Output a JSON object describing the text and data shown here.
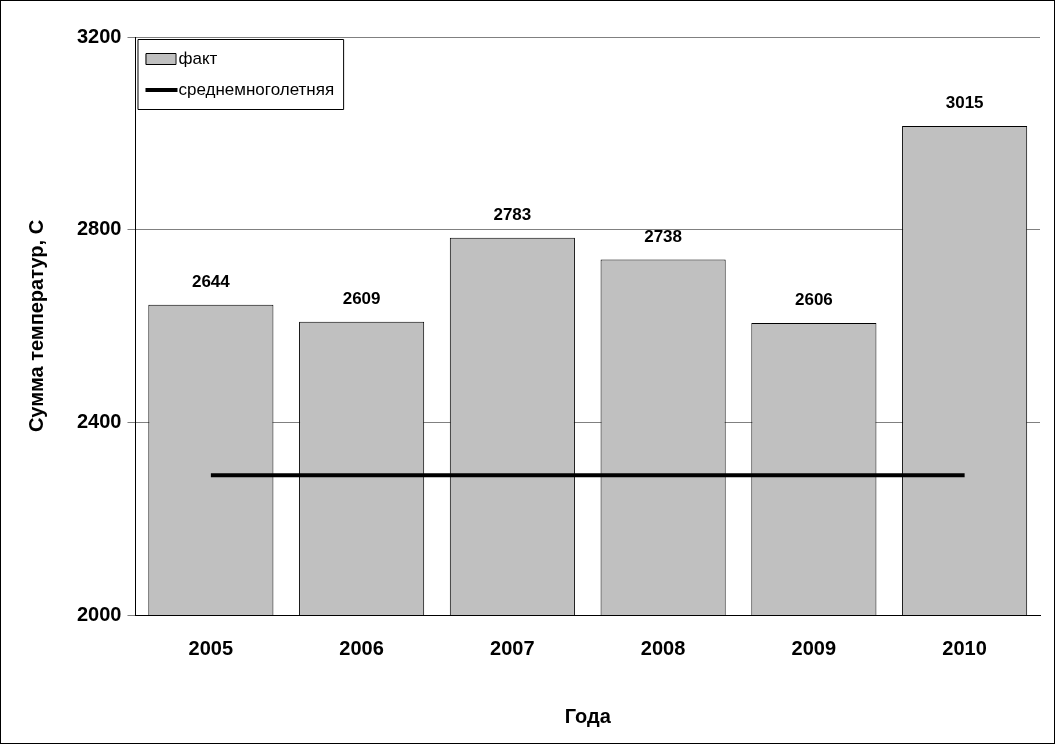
{
  "chart_data": {
    "type": "bar",
    "xlabel": "Года",
    "ylabel": "Сумма температур, С",
    "categories": [
      "2005",
      "2006",
      "2007",
      "2008",
      "2009",
      "2010"
    ],
    "series": [
      {
        "name": "факт",
        "color": "#c0c0c0",
        "values": [
          2644,
          2609,
          2783,
          2738,
          2606,
          3015
        ],
        "value_labels": [
          "2644",
          "2609",
          "2783",
          "2738",
          "2606",
          "3015"
        ]
      },
      {
        "name": "среднемноголетняя",
        "type": "line",
        "color": "#000000",
        "values": [
          2290,
          2290,
          2290,
          2290,
          2290,
          2290
        ]
      }
    ],
    "ylim": [
      2000,
      3200
    ],
    "yticks": [
      2000,
      2400,
      2800,
      3200
    ],
    "grid": "y",
    "legend": "top left",
    "marker": "none",
    "line_style": "solid"
  }
}
